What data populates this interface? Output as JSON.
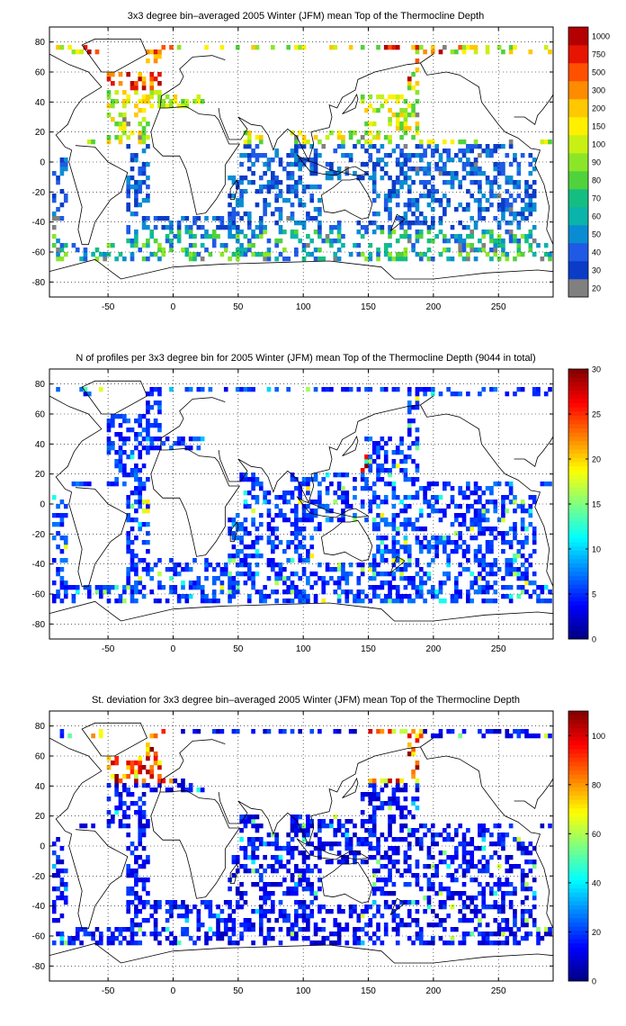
{
  "chart_data": [
    {
      "type": "heatmap",
      "title": "3x3 degree bin–averaged 2005 Winter (JFM) mean Top of the Thermocline Depth",
      "xlabel": "",
      "ylabel": "",
      "xlim": [
        -95,
        292
      ],
      "ylim": [
        -90,
        90
      ],
      "x_ticks": [
        "-50",
        "0",
        "50",
        "100",
        "150",
        "200",
        "250"
      ],
      "y_ticks": [
        "80",
        "60",
        "40",
        "20",
        "0",
        "-20",
        "-40",
        "-60",
        "-80"
      ],
      "grid": true,
      "colorbar": {
        "scale": "categorical",
        "labels": [
          "20",
          "30",
          "40",
          "50",
          "60",
          "70",
          "80",
          "90",
          "100",
          "150",
          "200",
          "300",
          "500",
          "750",
          "1000"
        ],
        "colors": [
          "#808080",
          "#0a3cc8",
          "#1e5ae6",
          "#0a8cd2",
          "#0ab4aa",
          "#14be82",
          "#50d23c",
          "#8ce628",
          "#c8f014",
          "#fff000",
          "#ffc800",
          "#ff8c00",
          "#ff5000",
          "#e61400",
          "#b40000"
        ]
      },
      "data_summary": "Sparse 3x3 degree bins; deep values (500-1000) in North Atlantic 45-65N and North Pacific 40-50N; mid values (70-150) across subtropical gyres; shallow values (20-50) across Southern Ocean and tropics."
    },
    {
      "type": "heatmap",
      "title": "N of profiles per 3x3 degree bin for 2005 Winter (JFM) mean Top of the Thermocline Depth  (9044 in total)",
      "xlabel": "",
      "ylabel": "",
      "xlim": [
        -95,
        292
      ],
      "ylim": [
        -90,
        90
      ],
      "x_ticks": [
        "-50",
        "0",
        "50",
        "100",
        "150",
        "200",
        "250"
      ],
      "y_ticks": [
        "80",
        "60",
        "40",
        "20",
        "0",
        "-20",
        "-40",
        "-60",
        "-80"
      ],
      "grid": true,
      "colorbar": {
        "scale": "continuous",
        "range": [
          0,
          30
        ],
        "ticks": [
          "0",
          "5",
          "10",
          "15",
          "20",
          "25",
          "30"
        ]
      },
      "data_summary": "Mostly 1-5 profiles per bin; up to ~30 near Japan (Kuroshio) and a few bins in Mediterranean / North Atlantic."
    },
    {
      "type": "heatmap",
      "title": "St. deviation for 3x3 degree bin–averaged 2005 Winter (JFM) mean Top of the Thermocline Depth",
      "xlabel": "",
      "ylabel": "",
      "xlim": [
        -95,
        292
      ],
      "ylim": [
        -90,
        90
      ],
      "x_ticks": [
        "-50",
        "0",
        "50",
        "100",
        "150",
        "200",
        "250"
      ],
      "y_ticks": [
        "80",
        "60",
        "40",
        "20",
        "0",
        "-20",
        "-40",
        "-60",
        "-80"
      ],
      "grid": true,
      "colorbar": {
        "scale": "continuous",
        "range": [
          0,
          110
        ],
        "ticks": [
          "0",
          "20",
          "40",
          "60",
          "80",
          "100"
        ]
      },
      "data_summary": "Mostly 0-20; high values (80-110) in North Atlantic subpolar region and North Pacific near 50N; scattered 40-60 in Mediterranean and Kuroshio area."
    }
  ]
}
